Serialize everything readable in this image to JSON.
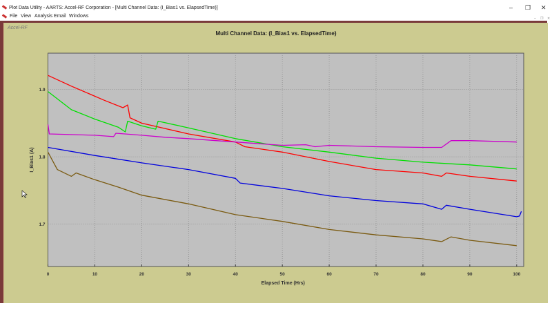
{
  "window": {
    "title": "Plot Data Utility - AARTS: Accel-RF Corporation - [Multi Channel Data: (I_Bias1 vs. ElapsedTime)]",
    "controls": {
      "minimize": "–",
      "restore": "❐",
      "close": "✕"
    }
  },
  "menu": {
    "items": [
      "File",
      "View",
      "Analysis",
      "Email",
      "Windows"
    ]
  },
  "child": {
    "caption": "Accel-RF"
  },
  "chart_data": {
    "type": "line",
    "title": "Multi Channel Data: (I_Bias1 vs. ElapsedTime)",
    "xlabel": "Elapsed Time (Hrs)",
    "ylabel": "I_Bias1 (A)",
    "xlim": [
      0,
      101.5
    ],
    "ylim": [
      1.637,
      1.954
    ],
    "xticks": [
      0,
      10,
      20,
      30,
      40,
      50,
      60,
      70,
      80,
      90,
      100
    ],
    "yticks": [
      1.7,
      1.8,
      1.9
    ],
    "ytick_labels": [
      "1.7",
      "1.8",
      "1.9"
    ],
    "grid": true,
    "background": "#c0c0c0",
    "series": [
      {
        "color": "#ff0000",
        "x": [
          0,
          5,
          12,
          16,
          17,
          17.5,
          20,
          30,
          40,
          42,
          50,
          60,
          70,
          80,
          84,
          85,
          90,
          100
        ],
        "y": [
          1.921,
          1.905,
          1.884,
          1.873,
          1.877,
          1.858,
          1.85,
          1.834,
          1.822,
          1.815,
          1.807,
          1.793,
          1.781,
          1.776,
          1.771,
          1.776,
          1.771,
          1.764
        ]
      },
      {
        "color": "#00e000",
        "x": [
          0,
          5,
          10,
          15,
          16.5,
          17,
          20,
          23,
          23.5,
          30,
          40,
          50,
          60,
          70,
          80,
          90,
          100
        ],
        "y": [
          1.897,
          1.87,
          1.856,
          1.844,
          1.837,
          1.853,
          1.846,
          1.841,
          1.853,
          1.843,
          1.827,
          1.815,
          1.807,
          1.798,
          1.792,
          1.788,
          1.782
        ]
      },
      {
        "color": "#cc00cc",
        "x": [
          0,
          0.3,
          10,
          14,
          14.5,
          20,
          25,
          30,
          40,
          50,
          55,
          57,
          60,
          70,
          80,
          84,
          86,
          90,
          100
        ],
        "y": [
          1.848,
          1.834,
          1.832,
          1.83,
          1.835,
          1.832,
          1.829,
          1.827,
          1.822,
          1.817,
          1.818,
          1.815,
          1.817,
          1.815,
          1.814,
          1.814,
          1.824,
          1.824,
          1.822
        ]
      },
      {
        "color": "#0000dd",
        "x": [
          0,
          10,
          20,
          30,
          40,
          41,
          50,
          60,
          70,
          80,
          84,
          85,
          90,
          100,
          100.6,
          101
        ],
        "y": [
          1.814,
          1.802,
          1.791,
          1.781,
          1.768,
          1.761,
          1.753,
          1.742,
          1.735,
          1.73,
          1.722,
          1.728,
          1.722,
          1.711,
          1.712,
          1.719
        ]
      },
      {
        "color": "#7a5a10",
        "x": [
          0,
          2,
          5,
          6,
          10,
          15,
          20,
          30,
          40,
          50,
          60,
          70,
          80,
          84,
          86,
          90,
          100
        ],
        "y": [
          1.807,
          1.781,
          1.771,
          1.776,
          1.766,
          1.755,
          1.743,
          1.73,
          1.714,
          1.704,
          1.692,
          1.684,
          1.678,
          1.674,
          1.681,
          1.676,
          1.668
        ]
      }
    ]
  }
}
